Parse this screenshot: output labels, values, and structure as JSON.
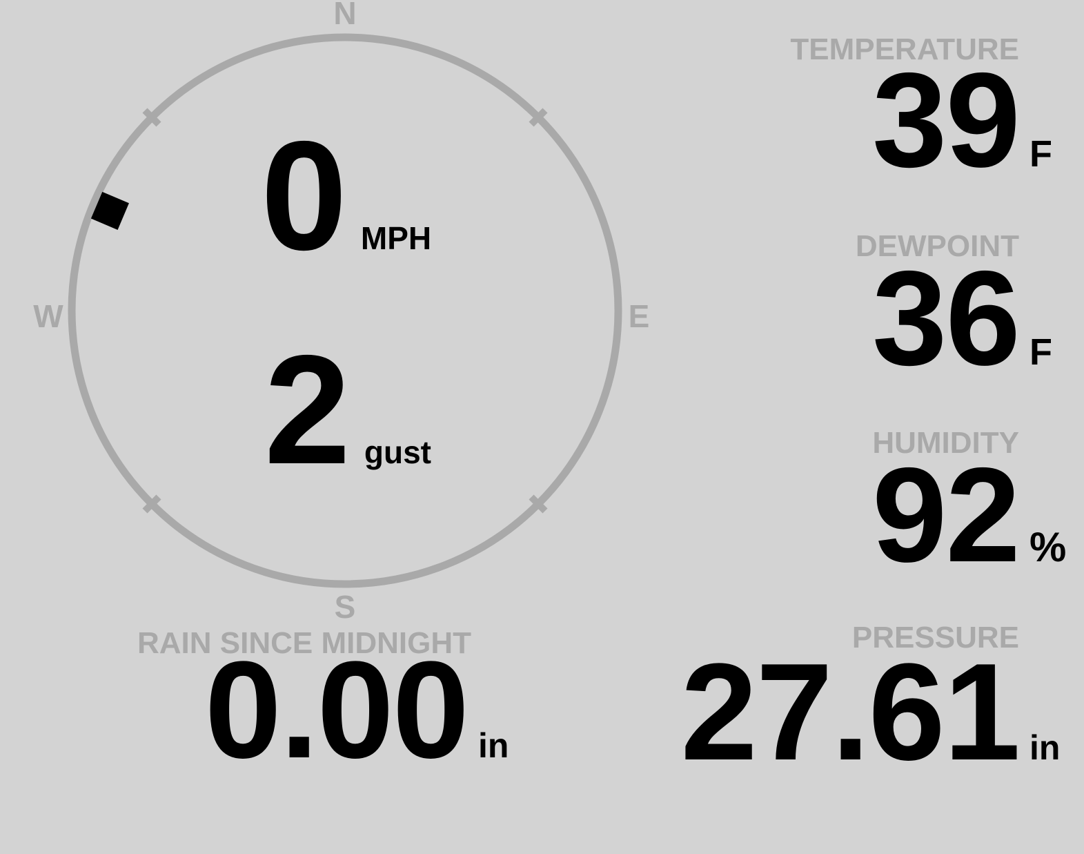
{
  "colors": {
    "bg": "#d3d3d3",
    "muted": "#a9a9a9",
    "fg": "#000000"
  },
  "compass": {
    "cardinals": {
      "n": "N",
      "e": "E",
      "s": "S",
      "w": "W"
    },
    "direction_deg": 293,
    "speed": {
      "value": "0",
      "unit": "MPH"
    },
    "gust": {
      "value": "2",
      "unit": "gust"
    }
  },
  "metrics": {
    "temperature": {
      "label": "TEMPERATURE",
      "value": "39",
      "unit": "F"
    },
    "dewpoint": {
      "label": "DEWPOINT",
      "value": "36",
      "unit": "F"
    },
    "humidity": {
      "label": "HUMIDITY",
      "value": "92",
      "unit": "%"
    },
    "rain": {
      "label": "RAIN SINCE MIDNIGHT",
      "value": "0.00",
      "unit": "in"
    },
    "pressure": {
      "label": "PRESSURE",
      "value": "27.61",
      "unit": "in"
    }
  }
}
